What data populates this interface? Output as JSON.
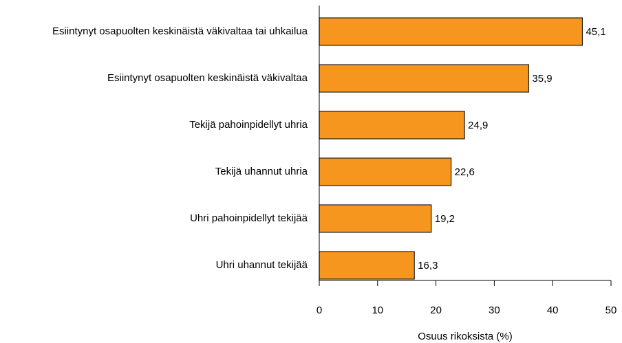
{
  "chart_data": {
    "type": "hbar",
    "categories": [
      "Esiintynyt osapuolten keskinäistä väkivaltaa tai uhkailua",
      "Esiintynyt osapuolten keskinäistä väkivaltaa",
      "Tekijä pahoinpidellyt uhria",
      "Tekijä uhannut uhria",
      "Uhri pahoinpidellyt tekijää",
      "Uhri uhannut tekijää"
    ],
    "values": [
      45.1,
      35.9,
      24.9,
      22.6,
      19.2,
      16.3
    ],
    "value_labels": [
      "45,1",
      "35,9",
      "24,9",
      "22,6",
      "19,2",
      "16,3"
    ],
    "color": "#f7961e",
    "xlabel": "Osuus rikoksista (%)",
    "xlim": [
      0,
      50
    ],
    "xticks": [
      0,
      10,
      20,
      30,
      40,
      50
    ]
  }
}
